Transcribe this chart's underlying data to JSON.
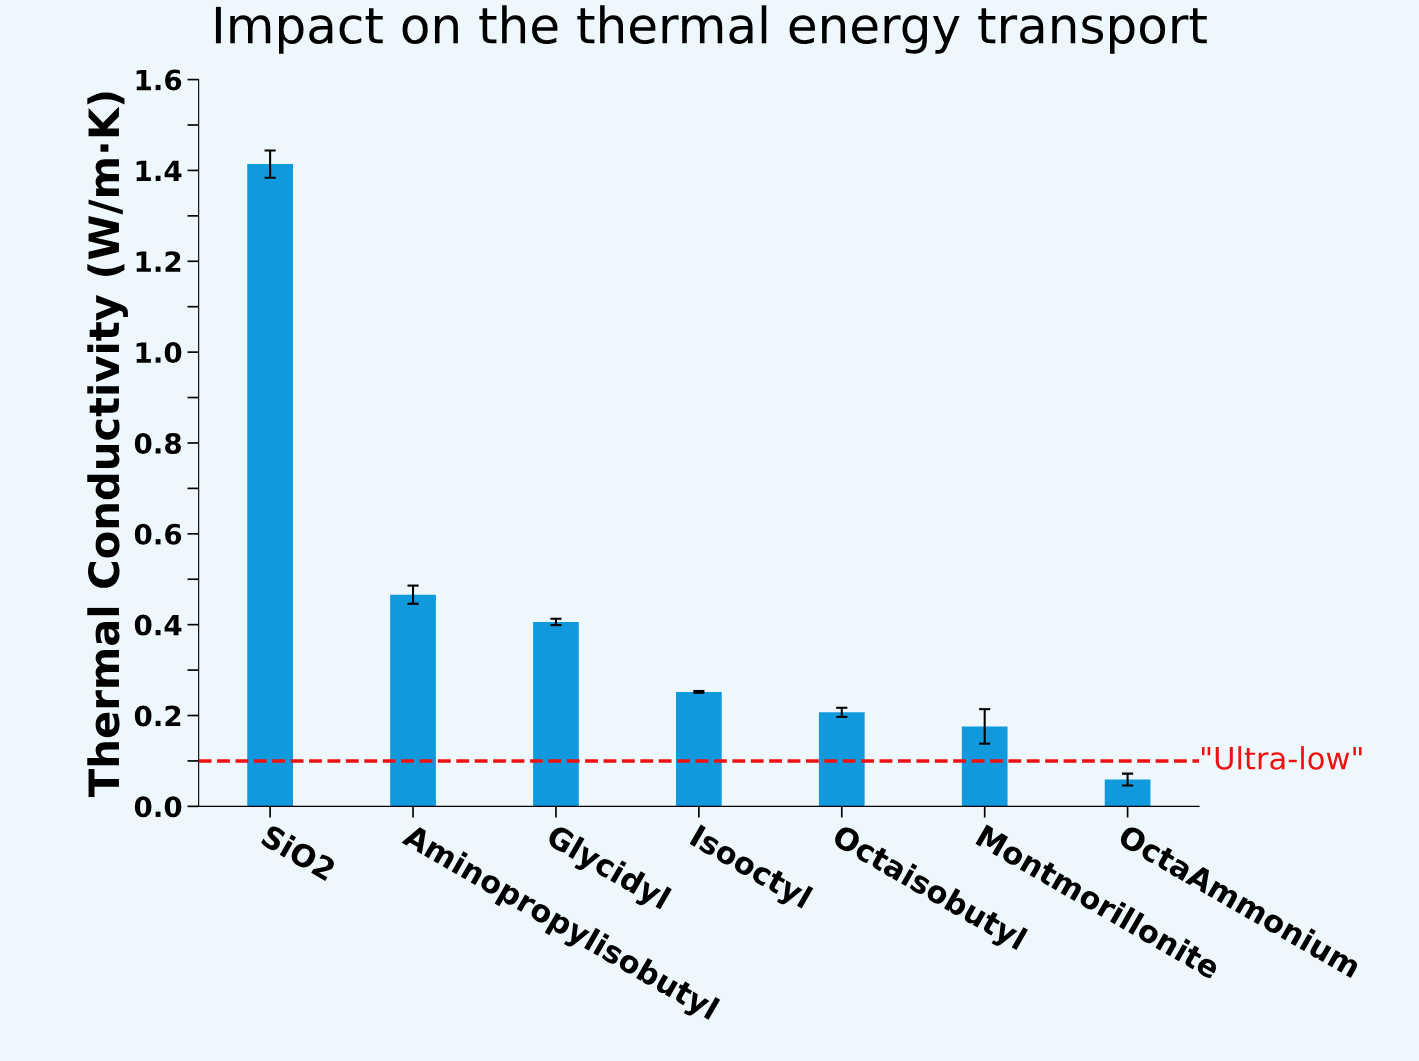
{
  "chart_data": {
    "type": "bar",
    "title": "Impact on the thermal energy transport",
    "ylabel": "Thermal Conductivity (W/m·K)",
    "categories": [
      "SiO2",
      "Aminopropylisobutyl",
      "Glycidyl",
      "Isooctyl",
      "Octaisobutyl",
      "Montmorillonite",
      "OctaAmmonium"
    ],
    "values": [
      1.414,
      0.466,
      0.406,
      0.252,
      0.207,
      0.176,
      0.059
    ],
    "errors": [
      0.03,
      0.02,
      0.007,
      0.002,
      0.01,
      0.038,
      0.013
    ],
    "color": "#1199dd",
    "ylim": [
      0,
      1.6
    ],
    "yticks": [
      {
        "value": 0,
        "label": "0.0"
      },
      {
        "value": 0.1,
        "label": null
      },
      {
        "value": 0.2,
        "label": "0.2"
      },
      {
        "value": 0.3,
        "label": null
      },
      {
        "value": 0.4,
        "label": "0.4"
      },
      {
        "value": 0.5,
        "label": null
      },
      {
        "value": 0.6,
        "label": "0.6"
      },
      {
        "value": 0.7,
        "label": null
      },
      {
        "value": 0.8,
        "label": "0.8"
      },
      {
        "value": 0.9,
        "label": null
      },
      {
        "value": 1.0,
        "label": "1.0"
      },
      {
        "value": 1.1,
        "label": null
      },
      {
        "value": 1.2,
        "label": "1.2"
      },
      {
        "value": 1.3,
        "label": null
      },
      {
        "value": 1.4,
        "label": "1.4"
      },
      {
        "value": 1.5,
        "label": null
      },
      {
        "value": 1.6,
        "label": "1.6"
      }
    ],
    "ref_lines": [
      {
        "axis": "y",
        "value": 0.1,
        "label": "\"Ultra-low\"",
        "color": "#ee1111",
        "line_style": "dashed"
      }
    ],
    "grid": false
  }
}
